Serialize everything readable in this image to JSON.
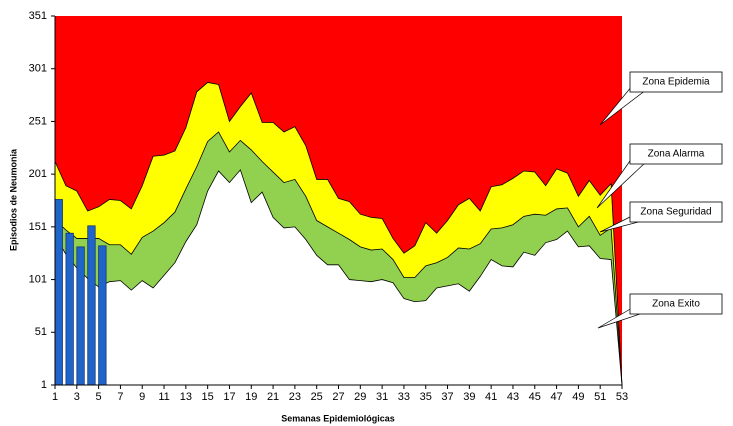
{
  "chart_data": {
    "type": "area",
    "y_label": "Episodios de Neumonia",
    "x_label": "Semanas Epidemiológicas",
    "x": [
      1,
      2,
      3,
      4,
      5,
      6,
      7,
      8,
      9,
      10,
      11,
      12,
      13,
      14,
      15,
      16,
      17,
      18,
      19,
      20,
      21,
      22,
      23,
      24,
      25,
      26,
      27,
      28,
      29,
      30,
      31,
      32,
      33,
      34,
      35,
      36,
      37,
      38,
      39,
      40,
      41,
      42,
      43,
      44,
      45,
      46,
      47,
      48,
      49,
      50,
      51,
      52,
      53
    ],
    "xlim": [
      1,
      53
    ],
    "xticks": [
      1,
      3,
      5,
      7,
      9,
      11,
      13,
      15,
      17,
      19,
      21,
      23,
      25,
      27,
      29,
      31,
      33,
      35,
      37,
      39,
      41,
      43,
      45,
      47,
      49,
      51,
      53
    ],
    "ylim": [
      1,
      351
    ],
    "yticks": [
      1,
      51,
      101,
      151,
      201,
      251,
      301,
      351
    ],
    "background": {
      "name": "Zona Epidemia",
      "color": "#ff0000"
    },
    "series": [
      {
        "name": "Zona Alarma",
        "color": "#ffff00",
        "values": [
          213,
          190,
          185,
          166,
          170,
          177,
          176,
          168,
          190,
          218,
          219,
          223,
          245,
          279,
          288,
          286,
          251,
          265,
          278,
          250,
          250,
          241,
          246,
          228,
          196,
          196,
          178,
          175,
          163,
          160,
          159,
          140,
          126,
          133,
          155,
          145,
          157,
          172,
          178,
          166,
          189,
          191,
          197,
          204,
          203,
          190,
          206,
          202,
          180,
          195,
          181,
          192,
          1
        ]
      },
      {
        "name": "Zona Seguridad",
        "color": "#92d050",
        "values": [
          158,
          148,
          140,
          140,
          140,
          134,
          134,
          125,
          141,
          147,
          155,
          165,
          187,
          208,
          232,
          241,
          222,
          233,
          224,
          213,
          203,
          193,
          196,
          180,
          157,
          151,
          145,
          139,
          132,
          129,
          130,
          120,
          103,
          103,
          114,
          117,
          122,
          131,
          130,
          135,
          149,
          150,
          153,
          161,
          163,
          162,
          168,
          169,
          151,
          161,
          143,
          150,
          1
        ]
      },
      {
        "name": "Zona Exito",
        "color": "#ffffff",
        "values": [
          142,
          125,
          112,
          102,
          94,
          99,
          100,
          91,
          100,
          93,
          105,
          117,
          137,
          153,
          185,
          204,
          193,
          205,
          174,
          184,
          160,
          150,
          151,
          139,
          124,
          115,
          115,
          101,
          100,
          99,
          101,
          98,
          83,
          80,
          81,
          93,
          95,
          97,
          90,
          104,
          120,
          114,
          113,
          127,
          124,
          136,
          139,
          147,
          132,
          133,
          121,
          120,
          1
        ]
      }
    ],
    "bars": {
      "color": "#1f64c8",
      "x": [
        1,
        2,
        3,
        4,
        5
      ],
      "values": [
        177,
        145,
        132,
        152,
        133
      ]
    }
  }
}
